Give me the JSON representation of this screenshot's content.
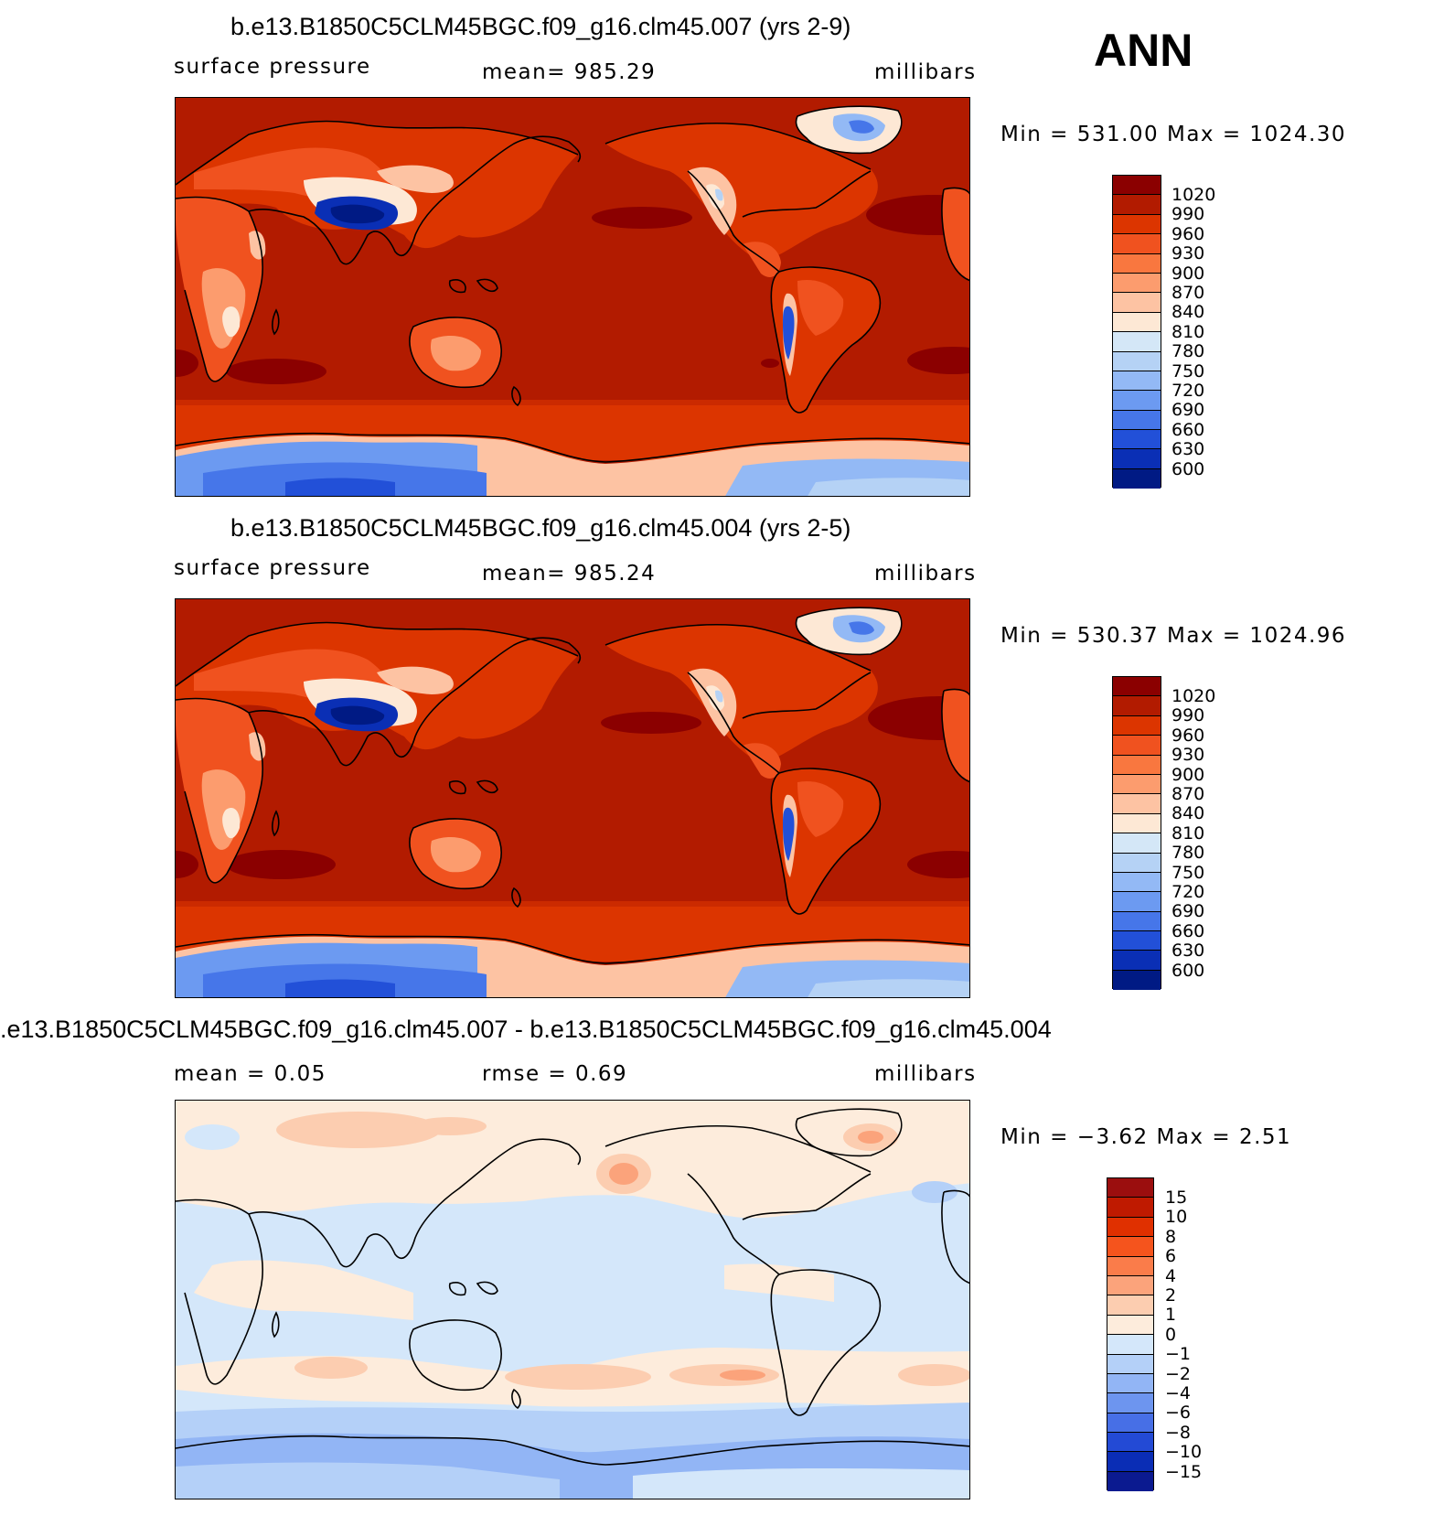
{
  "season": "ANN",
  "panels": [
    {
      "title": "b.e13.B1850C5CLM45BGC.f09_g16.clm45.007 (yrs 2-9)",
      "left_label": "surface pressure",
      "center_label": "mean=  985.29",
      "units": "millibars",
      "minmax": "Min  =  531.00  Max  =  1024.30",
      "colorbar_labels": [
        "1020",
        "990",
        "960",
        "930",
        "900",
        "870",
        "840",
        "810",
        "780",
        "750",
        "720",
        "690",
        "660",
        "630",
        "600"
      ]
    },
    {
      "title": "b.e13.B1850C5CLM45BGC.f09_g16.clm45.004 (yrs 2-5)",
      "left_label": "surface pressure",
      "center_label": "mean=  985.24",
      "units": "millibars",
      "minmax": "Min  =  530.37  Max  =  1024.96",
      "colorbar_labels": [
        "1020",
        "990",
        "960",
        "930",
        "900",
        "870",
        "840",
        "810",
        "780",
        "750",
        "720",
        "690",
        "660",
        "630",
        "600"
      ]
    },
    {
      "title": ".e13.B1850C5CLM45BGC.f09_g16.clm45.007 - b.e13.B1850C5CLM45BGC.f09_g16.clm45.004",
      "left_label": "mean  =     0.05",
      "center_label": "rmse  =     0.69",
      "units": "millibars",
      "minmax": "Min  =    −3.62  Max  =     2.51",
      "colorbar_labels": [
        "15",
        "10",
        "8",
        "6",
        "4",
        "2",
        "1",
        "0",
        "−1",
        "−2",
        "−4",
        "−6",
        "−8",
        "−10",
        "−15"
      ]
    }
  ],
  "colors": {
    "abs_scale": [
      "#8b0000",
      "#b21b00",
      "#dc3500",
      "#f0521f",
      "#f9773f",
      "#fc9c6e",
      "#fdc3a3",
      "#fde8d5",
      "#d4e7f7",
      "#b5d2f5",
      "#93b9f5",
      "#6c9af1",
      "#4676e9",
      "#2250d8",
      "#0a2fb5",
      "#001a84"
    ],
    "diff_scale": [
      "#9b0e0e",
      "#bf1a00",
      "#e03000",
      "#f5541d",
      "#fa7c4a",
      "#fba37b",
      "#fccdb0",
      "#fdecdc",
      "#d4e7fa",
      "#b4d0f8",
      "#92b5f5",
      "#6d95ef",
      "#476fe6",
      "#234ad5",
      "#0a2db5",
      "#0b1a90"
    ]
  }
}
